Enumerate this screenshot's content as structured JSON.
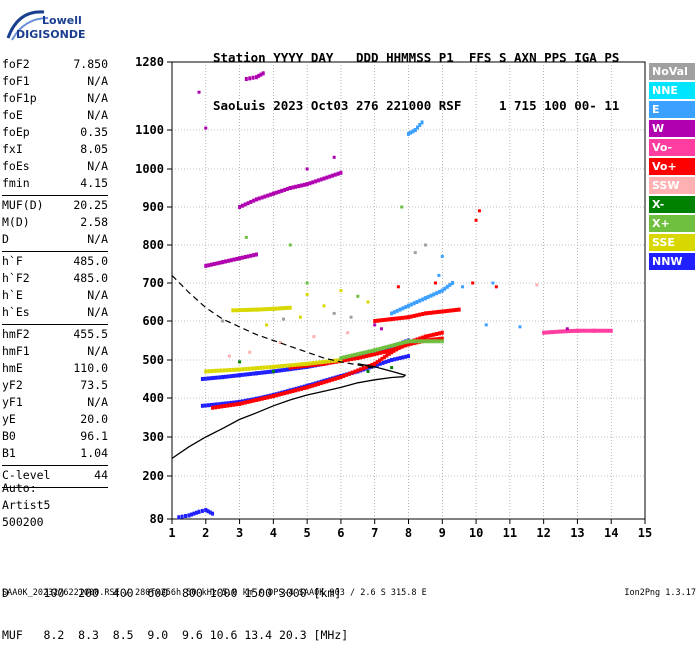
{
  "logo": {
    "line1": "Lowell",
    "line2": "DIGISONDE"
  },
  "header": {
    "labels": "Station YYYY DAY   DDD HHMMSS P1  FFS S AXN PPS IGA PS",
    "values": "SaoLuis 2023 Oct03 276 221000 RSF     1 715 100 00- 11"
  },
  "params": {
    "group1": [
      {
        "name": "foF2",
        "value": "7.850"
      },
      {
        "name": "foF1",
        "value": "N/A"
      },
      {
        "name": "foF1p",
        "value": "N/A"
      },
      {
        "name": "foE",
        "value": "N/A"
      },
      {
        "name": "foEp",
        "value": "0.35"
      },
      {
        "name": "fxI",
        "value": "8.05"
      },
      {
        "name": "foEs",
        "value": "N/A"
      },
      {
        "name": "fmin",
        "value": "4.15"
      }
    ],
    "group2": [
      {
        "name": "MUF(D)",
        "value": "20.25"
      },
      {
        "name": "M(D)",
        "value": "2.58"
      },
      {
        "name": "D",
        "value": "N/A"
      }
    ],
    "group3": [
      {
        "name": "h`F",
        "value": "485.0"
      },
      {
        "name": "h`F2",
        "value": "485.0"
      },
      {
        "name": "h`E",
        "value": "N/A"
      },
      {
        "name": "h`Es",
        "value": "N/A"
      }
    ],
    "group4": [
      {
        "name": "hmF2",
        "value": "455.5"
      },
      {
        "name": "hmF1",
        "value": "N/A"
      },
      {
        "name": "hmE",
        "value": "110.0"
      },
      {
        "name": "yF2",
        "value": "73.5"
      },
      {
        "name": "yF1",
        "value": "N/A"
      },
      {
        "name": "yE",
        "value": "20.0"
      },
      {
        "name": "B0",
        "value": "96.1"
      },
      {
        "name": "B1",
        "value": "1.04"
      }
    ],
    "group5": [
      {
        "name": "C-level",
        "value": "44"
      }
    ]
  },
  "auto": {
    "line1": "Auto:",
    "line2": "Artist5",
    "line3": "500200"
  },
  "legend": [
    {
      "label": "NoVal",
      "color": "#a0a0a0"
    },
    {
      "label": "NNE",
      "color": "#00e5ff"
    },
    {
      "label": "E",
      "color": "#3ca0ff"
    },
    {
      "label": "W",
      "color": "#b000b0"
    },
    {
      "label": "Vo-",
      "color": "#ff3ca0"
    },
    {
      "label": "Vo+",
      "color": "#ff0000"
    },
    {
      "label": "SSW",
      "color": "#ffb0b0"
    },
    {
      "label": "X-",
      "color": "#008000"
    },
    {
      "label": "X+",
      "color": "#70c040"
    },
    {
      "label": "SSE",
      "color": "#d8d800"
    },
    {
      "label": "NNW",
      "color": "#2020ff"
    }
  ],
  "dmuf": {
    "d_line": "D     100  200  400  600  800 1000 1500 3000 [km]",
    "muf_line": "MUF   8.2  8.3  8.5  9.0  9.6 10.6 13.4 20.3 [MHz]"
  },
  "footer": "SAA0K_2023276221000.RSF / 280fx256h 50 kHz 5.0 km / DPS-4 SAA0K 903 / 2.6 S 315.8 E",
  "version": "Ion2Png 1.3.17",
  "chart_data": {
    "type": "scatter",
    "x_ticks": [
      1,
      2,
      3,
      4,
      5,
      6,
      7,
      8,
      9,
      10,
      11,
      12,
      13,
      14,
      15
    ],
    "y_ticks": [
      80,
      200,
      300,
      400,
      500,
      600,
      700,
      800,
      900,
      1000,
      1100,
      1280
    ],
    "xlim": [
      1,
      15
    ],
    "ylim": [
      80,
      1280
    ],
    "grid": true,
    "dashed_trace": [
      [
        1.0,
        720
      ],
      [
        1.5,
        675
      ],
      [
        2.0,
        635
      ],
      [
        2.5,
        605
      ],
      [
        3.0,
        585
      ],
      [
        3.5,
        565
      ],
      [
        4.0,
        550
      ],
      [
        4.5,
        535
      ],
      [
        5.0,
        520
      ],
      [
        5.5,
        505
      ],
      [
        6.0,
        495
      ],
      [
        6.5,
        487
      ],
      [
        7.0,
        478
      ]
    ],
    "solid_profile": [
      [
        1.0,
        245
      ],
      [
        1.5,
        275
      ],
      [
        2.0,
        300
      ],
      [
        2.5,
        322
      ],
      [
        3.0,
        345
      ],
      [
        3.5,
        362
      ],
      [
        4.0,
        380
      ],
      [
        4.5,
        395
      ],
      [
        5.0,
        408
      ],
      [
        5.5,
        418
      ],
      [
        6.0,
        428
      ],
      [
        6.5,
        440
      ],
      [
        7.0,
        448
      ],
      [
        7.5,
        454
      ],
      [
        7.85,
        456
      ],
      [
        7.9,
        460
      ],
      [
        7.6,
        468
      ],
      [
        7.0,
        482
      ],
      [
        6.5,
        490
      ]
    ],
    "echo_traces": [
      {
        "color": "#2020ff",
        "points": [
          [
            1.9,
            380
          ],
          [
            2.5,
            385
          ],
          [
            3.0,
            390
          ],
          [
            3.5,
            398
          ],
          [
            4.0,
            408
          ],
          [
            4.5,
            420
          ],
          [
            5.0,
            432
          ],
          [
            5.5,
            445
          ],
          [
            6.0,
            458
          ],
          [
            6.5,
            470
          ],
          [
            7.0,
            485
          ],
          [
            7.5,
            500
          ],
          [
            8.0,
            510
          ]
        ]
      },
      {
        "color": "#2020ff",
        "points": [
          [
            1.9,
            450
          ],
          [
            2.5,
            455
          ],
          [
            3.0,
            460
          ],
          [
            3.5,
            465
          ],
          [
            4.0,
            470
          ],
          [
            4.5,
            476
          ],
          [
            5.0,
            482
          ],
          [
            5.5,
            490
          ],
          [
            6.0,
            500
          ],
          [
            6.5,
            510
          ],
          [
            7.0,
            520
          ],
          [
            7.5,
            535
          ],
          [
            8.0,
            550
          ]
        ]
      },
      {
        "color": "#ff0000",
        "points": [
          [
            2.2,
            375
          ],
          [
            3.0,
            385
          ],
          [
            4.0,
            405
          ],
          [
            5.0,
            428
          ],
          [
            6.0,
            455
          ],
          [
            7.0,
            490
          ],
          [
            7.5,
            520
          ],
          [
            8.0,
            545
          ],
          [
            8.5,
            560
          ],
          [
            9.0,
            570
          ]
        ]
      },
      {
        "color": "#ff0000",
        "points": [
          [
            4.5,
            480
          ],
          [
            5.5,
            490
          ],
          [
            6.5,
            505
          ],
          [
            7.5,
            525
          ],
          [
            8.0,
            540
          ],
          [
            8.5,
            550
          ],
          [
            9.0,
            555
          ]
        ]
      },
      {
        "color": "#ff0000",
        "points": [
          [
            7.0,
            600
          ],
          [
            7.5,
            605
          ],
          [
            8.0,
            610
          ],
          [
            8.5,
            620
          ],
          [
            9.0,
            625
          ],
          [
            9.5,
            630
          ]
        ]
      },
      {
        "color": "#d8d800",
        "points": [
          [
            2.0,
            470
          ],
          [
            3.0,
            475
          ],
          [
            4.0,
            482
          ],
          [
            5.0,
            490
          ],
          [
            6.0,
            500
          ]
        ]
      },
      {
        "color": "#d8d800",
        "points": [
          [
            2.8,
            628
          ],
          [
            3.5,
            630
          ],
          [
            4.0,
            632
          ],
          [
            4.5,
            635
          ]
        ]
      },
      {
        "color": "#3ca0ff",
        "points": [
          [
            7.5,
            620
          ],
          [
            8.0,
            640
          ],
          [
            8.5,
            660
          ],
          [
            9.0,
            680
          ],
          [
            9.3,
            700
          ]
        ]
      },
      {
        "color": "#70c040",
        "points": [
          [
            6.0,
            505
          ],
          [
            7.0,
            525
          ],
          [
            8.0,
            548
          ],
          [
            9.0,
            548
          ]
        ]
      },
      {
        "color": "#b000b0",
        "points": [
          [
            3.0,
            900
          ],
          [
            3.5,
            920
          ],
          [
            4.0,
            935
          ],
          [
            4.5,
            950
          ],
          [
            5.0,
            960
          ],
          [
            5.5,
            975
          ],
          [
            6.0,
            990
          ]
        ]
      },
      {
        "color": "#b000b0",
        "points": [
          [
            2.0,
            745
          ],
          [
            2.5,
            755
          ],
          [
            3.0,
            765
          ],
          [
            3.5,
            775
          ]
        ]
      },
      {
        "color": "#3ca0ff",
        "points": [
          [
            8.0,
            1090
          ],
          [
            8.2,
            1100
          ],
          [
            8.4,
            1120
          ]
        ]
      },
      {
        "color": "#b000b0",
        "points": [
          [
            3.2,
            1235
          ],
          [
            3.5,
            1240
          ],
          [
            3.7,
            1250
          ]
        ]
      },
      {
        "color": "#ff3ca0",
        "points": [
          [
            12.0,
            570
          ],
          [
            12.5,
            573
          ],
          [
            13.0,
            575
          ],
          [
            13.5,
            575
          ],
          [
            14.0,
            575
          ]
        ]
      },
      {
        "color": "#2020ff",
        "points": [
          [
            1.2,
            85
          ],
          [
            1.5,
            90
          ],
          [
            1.8,
            100
          ],
          [
            2.0,
            105
          ],
          [
            2.2,
            95
          ]
        ]
      }
    ],
    "scatter_points": [
      {
        "color": "#3ca0ff",
        "points": [
          [
            10.3,
            590
          ],
          [
            11.3,
            585
          ],
          [
            9.0,
            770
          ],
          [
            10.5,
            700
          ],
          [
            9.6,
            690
          ],
          [
            8.9,
            720
          ]
        ]
      },
      {
        "color": "#ff0000",
        "points": [
          [
            7.7,
            690
          ],
          [
            8.8,
            700
          ],
          [
            10.0,
            865
          ],
          [
            10.1,
            890
          ],
          [
            10.6,
            690
          ],
          [
            9.9,
            700
          ]
        ]
      },
      {
        "color": "#b000b0",
        "points": [
          [
            1.8,
            1200
          ],
          [
            2.0,
            1105
          ],
          [
            5.0,
            1000
          ],
          [
            5.8,
            1030
          ],
          [
            7.2,
            580
          ],
          [
            7.0,
            590
          ],
          [
            12.7,
            580
          ]
        ]
      },
      {
        "color": "#70c040",
        "points": [
          [
            3.2,
            820
          ],
          [
            4.5,
            800
          ],
          [
            5.0,
            700
          ],
          [
            6.5,
            665
          ],
          [
            7.8,
            900
          ]
        ]
      },
      {
        "color": "#d8d800",
        "points": [
          [
            5.0,
            670
          ],
          [
            6.0,
            680
          ],
          [
            5.5,
            640
          ],
          [
            4.8,
            610
          ],
          [
            3.8,
            590
          ],
          [
            6.8,
            650
          ]
        ]
      },
      {
        "color": "#ffb0b0",
        "points": [
          [
            2.7,
            510
          ],
          [
            3.3,
            520
          ],
          [
            4.2,
            545
          ],
          [
            5.2,
            560
          ],
          [
            6.2,
            570
          ],
          [
            11.8,
            695
          ]
        ]
      },
      {
        "color": "#008000",
        "points": [
          [
            4.0,
            470
          ],
          [
            6.8,
            470
          ],
          [
            7.5,
            480
          ],
          [
            3.0,
            495
          ]
        ]
      },
      {
        "color": "#a0a0a0",
        "points": [
          [
            2.5,
            600
          ],
          [
            4.3,
            605
          ],
          [
            5.8,
            620
          ],
          [
            6.3,
            610
          ],
          [
            8.2,
            780
          ],
          [
            8.5,
            800
          ]
        ]
      }
    ]
  }
}
